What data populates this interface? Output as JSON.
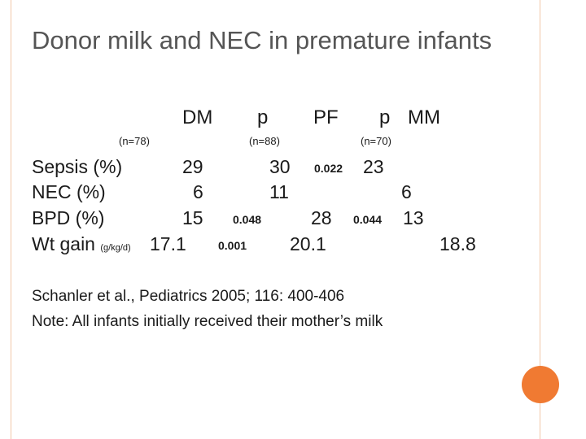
{
  "title": "Donor milk and NEC  in premature infants",
  "columns": {
    "dm": "DM",
    "p1": "p",
    "pf": "PF",
    "p2": "p",
    "mm": "MM"
  },
  "n": {
    "dm": "(n=78)",
    "pf": "(n=88)",
    "mm": "(n=70)"
  },
  "rows": [
    {
      "label": "Sepsis (%)",
      "dm": "29",
      "pf": "30",
      "p_pf": "",
      "p_mm": "0.022",
      "mm": "23"
    },
    {
      "label": "NEC (%)",
      "dm": "6",
      "pf": "11",
      "p_pf": "",
      "p_mm": "",
      "mm": "6"
    },
    {
      "label": "BPD (%)",
      "dm": "15",
      "pf": "28",
      "p_pf": "0.048",
      "p_mm": "0.044",
      "mm": "13"
    },
    {
      "label": "Wt gain",
      "label_unit": "(g/kg/d)",
      "dm": "17.1",
      "pf": "20.1",
      "p_pf": "0.001",
      "p_mm": "",
      "mm": "18.8"
    }
  ],
  "footer": {
    "citation": "Schanler et al., Pediatrics 2005; 116: 400-406",
    "note": "Note: All infants initially received their mother’s milk"
  },
  "colors": {
    "accent": "#f07a32",
    "frame": "#f2c7a8",
    "title": "#555555"
  }
}
